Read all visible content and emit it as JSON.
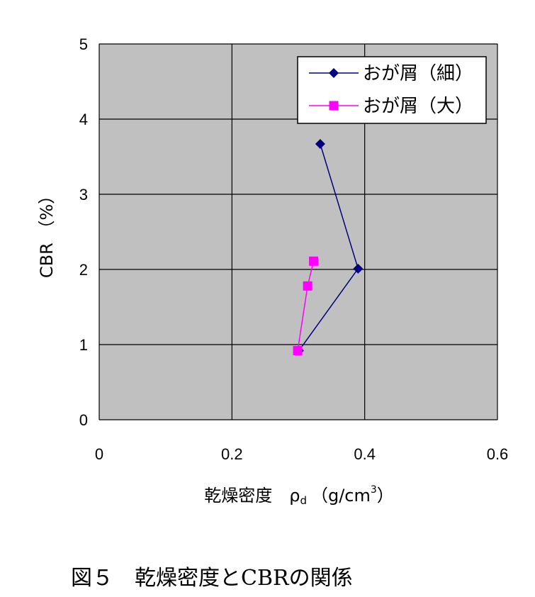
{
  "chart_data": {
    "type": "line",
    "xlabel": "乾燥密度　ρ",
    "xlabel_sub": "d",
    "xlabel_unit": "（g/cm",
    "xlabel_sup": "3",
    "xlabel_close": "）",
    "ylabel": "CBR （%）",
    "xlim": [
      0,
      0.6
    ],
    "ylim": [
      0,
      5
    ],
    "x_ticks": [
      "0",
      "0.2",
      "0.4",
      "0.6"
    ],
    "y_ticks": [
      "0",
      "1",
      "2",
      "3",
      "4",
      "5"
    ],
    "grid": true,
    "legend_position": "top-right",
    "series": [
      {
        "name": "おが屑（細）",
        "color": "#000080",
        "marker": "diamond",
        "points": [
          [
            0.333,
            3.67
          ],
          [
            0.39,
            2.01
          ],
          [
            0.301,
            0.92
          ]
        ]
      },
      {
        "name": "おが屑（大）",
        "color": "#ff00ff",
        "marker": "square",
        "points": [
          [
            0.323,
            2.11
          ],
          [
            0.314,
            1.78
          ],
          [
            0.299,
            0.92
          ]
        ]
      }
    ]
  },
  "caption": "図５　乾燥密度とCBRの関係"
}
